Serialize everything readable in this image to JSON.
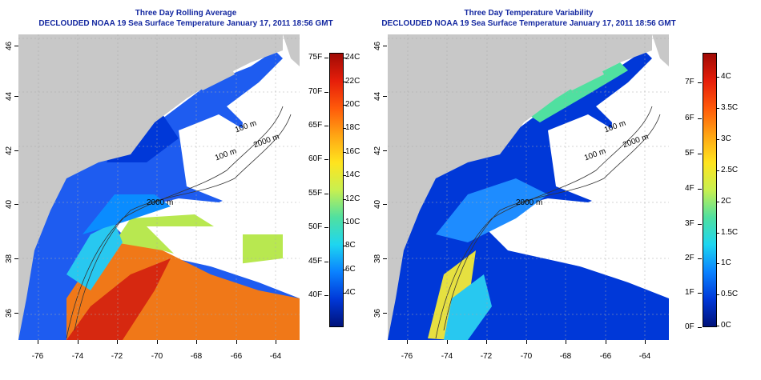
{
  "left_panel": {
    "title": "Three Day Rolling Average",
    "subtitle": "DECLOUDED NOAA 19 Sea Surface Temperature January 17, 2011 18:56 GMT",
    "colorbar_f": [
      "75F",
      "70F",
      "65F",
      "60F",
      "55F",
      "50F",
      "45F",
      "40F"
    ],
    "colorbar_c": [
      "24C",
      "22C",
      "20C",
      "18C",
      "16C",
      "14C",
      "12C",
      "10C",
      "8C",
      "6C",
      "4C"
    ],
    "colors": [
      "#00127a",
      "#0038d8",
      "#0a82ff",
      "#1ed6f0",
      "#50e0a0",
      "#c8f050",
      "#ffe41e",
      "#ffa514",
      "#ff5a0a",
      "#e61e0a",
      "#a00a05"
    ]
  },
  "right_panel": {
    "title": "Three Day Temperature Variability",
    "subtitle": "DECLOUDED NOAA 19 Sea Surface Temperature January 17, 2011 18:56 GMT",
    "colorbar_f": [
      "7F",
      "6F",
      "5F",
      "4F",
      "3F",
      "2F",
      "1F",
      "0F"
    ],
    "colorbar_c": [
      "4C",
      "3.5C",
      "3C",
      "2.5C",
      "2C",
      "1.5C",
      "1C",
      "0.5C",
      "0C"
    ],
    "colors": [
      "#00127a",
      "#0038d8",
      "#0a82ff",
      "#1ed6f0",
      "#50e0a0",
      "#c8f050",
      "#ffe41e",
      "#ffa514",
      "#ff5a0a",
      "#e61e0a",
      "#a00a05"
    ]
  },
  "x_ticks": [
    "-76",
    "-74",
    "-72",
    "-70",
    "-68",
    "-66",
    "-64"
  ],
  "y_ticks": [
    "46",
    "44",
    "42",
    "40",
    "38",
    "36"
  ],
  "contour_labels": [
    "100 m",
    "2000 m",
    "100 m",
    "2000 m"
  ],
  "land_color": "#c8c8c8"
}
